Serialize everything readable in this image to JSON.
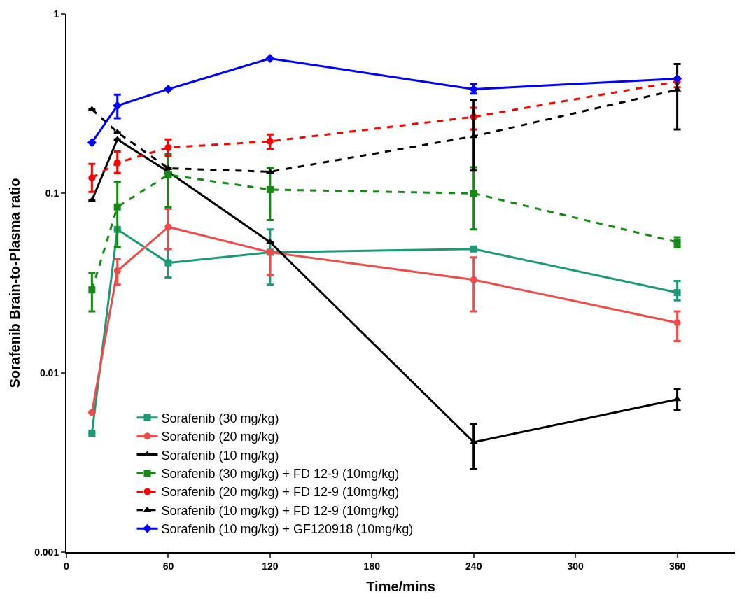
{
  "chart_data": {
    "type": "line",
    "xlabel": "Time/mins",
    "ylabel": "Sorafenib Brain-to-Plasma ratio",
    "log": "y",
    "xlim": [
      0,
      394
    ],
    "xticks": [
      0,
      60,
      120,
      180,
      240,
      300,
      360
    ],
    "ylim": [
      0.001,
      1
    ],
    "yticks": [
      0.001,
      0.01,
      0.1,
      1
    ],
    "x": [
      15,
      30,
      60,
      120,
      240,
      360
    ],
    "legend": "bottom left",
    "series": [
      {
        "name": "Sorafenib (30 mg/kg)",
        "color": "#1a9a76",
        "marker": "square",
        "line_style": "solid",
        "values": [
          0.0046,
          0.063,
          0.041,
          0.047,
          0.049,
          0.028
        ],
        "errors": [
          null,
          null,
          [
            0.034,
            0.049
          ],
          [
            0.031,
            0.063
          ],
          null,
          [
            0.0253,
            0.0325
          ]
        ]
      },
      {
        "name": "Sorafenib (20 mg/kg)",
        "color": "#f04a4a",
        "marker": "circle",
        "line_style": "solid",
        "values": [
          0.006,
          0.037,
          0.065,
          0.047,
          0.033,
          0.019
        ],
        "errors": [
          null,
          [
            0.031,
            0.043
          ],
          [
            0.049,
            0.082
          ],
          [
            0.035,
            0.047
          ],
          [
            0.022,
            0.044
          ],
          [
            0.015,
            0.022
          ]
        ]
      },
      {
        "name": "Sorafenib (10 mg/kg)",
        "color": "#000000",
        "marker": "triangle",
        "line_style": "solid",
        "values": [
          0.0915,
          0.2,
          0.132,
          0.0535,
          0.0041,
          0.0071
        ],
        "errors": [
          null,
          null,
          null,
          null,
          [
            0.0029,
            0.0052
          ],
          [
            0.0062,
            0.0081
          ]
        ]
      },
      {
        "name": "Sorafenib (30 mg/kg) + FD 12-9 (10mg/kg)",
        "color": "#138a13",
        "marker": "square",
        "line_style": "dashed",
        "values": [
          0.029,
          0.084,
          0.127,
          0.105,
          0.1,
          0.0535
        ],
        "errors": [
          [
            0.022,
            0.036
          ],
          [
            0.05,
            0.116
          ],
          [
            0.084,
            0.165
          ],
          [
            0.071,
            0.139
          ],
          [
            0.063,
            0.14
          ],
          [
            0.05,
            0.057
          ]
        ]
      },
      {
        "name": "Sorafenib (20 mg/kg) + FD 12-9 (10mg/kg)",
        "color": "#ff0000",
        "marker": "circle",
        "line_style": "dashed",
        "values": [
          0.122,
          0.148,
          0.18,
          0.195,
          0.267,
          0.42
        ],
        "errors": [
          [
            0.102,
            0.146
          ],
          [
            0.13,
            0.171
          ],
          [
            0.162,
            0.2
          ],
          [
            0.177,
            0.213
          ],
          [
            0.227,
            0.3
          ],
          [
            0.39,
            0.44
          ]
        ]
      },
      {
        "name": "Sorafenib (10 mg/kg) + FD 12-9 (10mg/kg)",
        "color": "#000000",
        "marker": "triangle",
        "line_style": "dashed",
        "values": [
          0.294,
          0.219,
          0.138,
          0.132,
          0.208,
          0.378
        ],
        "errors": [
          null,
          null,
          null,
          null,
          [
            0.134,
            0.33
          ],
          [
            0.227,
            0.526
          ]
        ]
      },
      {
        "name": "Sorafenib (10 mg/kg) + GF120918 (10mg/kg)",
        "color": "#0000ff",
        "marker": "diamond",
        "line_style": "solid",
        "values": [
          0.192,
          0.308,
          0.381,
          0.565,
          0.381,
          0.436
        ],
        "errors": [
          null,
          [
            0.262,
            0.355
          ],
          null,
          null,
          [
            0.36,
            0.406
          ],
          null
        ]
      }
    ]
  }
}
